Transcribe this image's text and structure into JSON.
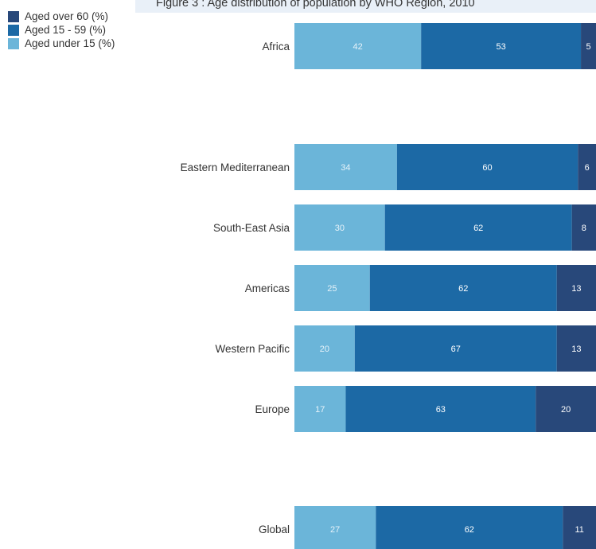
{
  "chart_data": {
    "type": "bar",
    "orientation": "horizontal",
    "stacked": true,
    "title": "Figure 3 : Age distribution of population by WHO Region, 2010",
    "categories": [
      "Africa",
      "Eastern Mediterranean",
      "South-East Asia",
      "Americas",
      "Western Pacific",
      "Europe",
      "Global"
    ],
    "series": [
      {
        "name": "Aged under 15 (%)",
        "color": "#6bb5d9",
        "values": [
          42,
          34,
          30,
          25,
          20,
          17,
          27
        ]
      },
      {
        "name": "Aged 15 - 59 (%)",
        "color": "#1c69a5",
        "values": [
          53,
          60,
          62,
          62,
          67,
          63,
          62
        ]
      },
      {
        "name": "Aged over 60 (%)",
        "color": "#28487a",
        "values": [
          5,
          6,
          8,
          13,
          13,
          20,
          11
        ]
      }
    ],
    "legend": {
      "position": "top-left",
      "order": [
        "Aged over 60 (%)",
        "Aged 15 - 59 (%)",
        "Aged under 15 (%)"
      ]
    },
    "xlim": [
      0,
      100
    ],
    "grid": false
  }
}
